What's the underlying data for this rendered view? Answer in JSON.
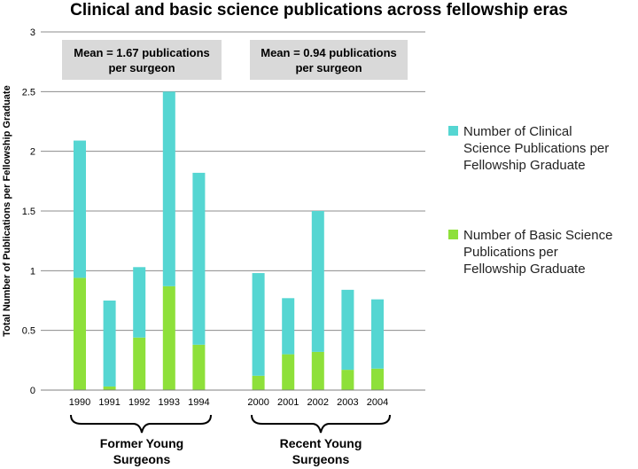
{
  "chart_data": {
    "type": "bar",
    "stacked": true,
    "title": "Clinical and basic science publications across fellowship eras",
    "ylabel": "Total Number of Publications per Fellowship Graduate",
    "xlabel": "",
    "ylim": [
      0,
      3
    ],
    "yticks": [
      "0",
      "0.5",
      "1",
      "1.5",
      "2",
      "2.5",
      "3"
    ],
    "categories": [
      "1990",
      "1991",
      "1992",
      "1993",
      "1994",
      "2000",
      "2001",
      "2002",
      "2003",
      "2004"
    ],
    "series": [
      {
        "name": "Number of Basic Science Publications per Fellowship Graduate",
        "color": "#8ee03a",
        "values": [
          0.94,
          0.03,
          0.44,
          0.87,
          0.38,
          0.12,
          0.3,
          0.32,
          0.17,
          0.18
        ]
      },
      {
        "name": "Number of Clinical Science Publications per Fellowship Graduate",
        "color": "#55d6d2",
        "values": [
          1.15,
          0.72,
          0.59,
          1.63,
          1.44,
          0.86,
          0.47,
          1.18,
          0.67,
          0.58
        ]
      }
    ],
    "groups": [
      {
        "label_line1": "Former Young",
        "label_line2": "Surgeons"
      },
      {
        "label_line1": "Recent Young",
        "label_line2": "Surgeons"
      }
    ],
    "annotations": [
      {
        "line1": "Mean = 1.67 publications",
        "line2": "per surgeon"
      },
      {
        "line1": "Mean = 0.94 publications",
        "line2": "per surgeon"
      }
    ],
    "legend": {
      "placement": "right",
      "items": [
        {
          "line1": "Number of Clinical",
          "line2": "Science Publications per",
          "line3": "Fellowship Graduate"
        },
        {
          "line1": "Number of Basic Science",
          "line2": "Publications per",
          "line3": "Fellowship Graduate"
        }
      ]
    },
    "grid": true
  }
}
